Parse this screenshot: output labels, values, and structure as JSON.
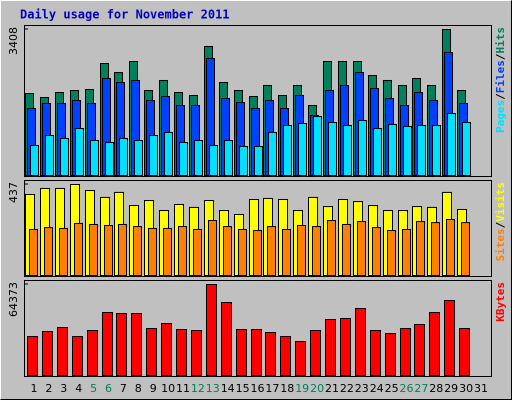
{
  "chart_data": [
    {
      "type": "bar",
      "title": "Daily usage for November 2011",
      "title_color": "#0000c0",
      "ylim": [
        0,
        3408
      ],
      "yticks": [
        3408
      ],
      "legend_separator": "/",
      "series": [
        {
          "name": "Hits",
          "color": "#00805c",
          "values": [
            1914,
            1821,
            1937,
            1984,
            2007,
            2614,
            2404,
            2661,
            1984,
            2218,
            1937,
            1867,
            3011,
            2171,
            1984,
            1844,
            2101,
            1867,
            2101,
            1634,
            2661,
            2661,
            2661,
            2334,
            2218,
            2101,
            2264,
            2101,
            3408,
            1984,
            null
          ]
        },
        {
          "name": "Files",
          "color": "#0040ff",
          "values": [
            1564,
            1681,
            1681,
            1751,
            1681,
            2264,
            2171,
            2218,
            1751,
            1844,
            1634,
            1634,
            2731,
            1797,
            1704,
            1564,
            1751,
            1564,
            1867,
            1401,
            1984,
            2101,
            2404,
            2031,
            1797,
            1634,
            1937,
            1751,
            2871,
            1681,
            null
          ]
        },
        {
          "name": "Pages",
          "color": "#00e0ff",
          "values": [
            700,
            934,
            864,
            1097,
            817,
            770,
            864,
            817,
            934,
            1004,
            770,
            817,
            700,
            817,
            677,
            677,
            1004,
            1167,
            1214,
            1377,
            1237,
            1167,
            1284,
            1097,
            1190,
            1144,
            1167,
            1167,
            1447,
            1237,
            null
          ]
        }
      ]
    },
    {
      "type": "bar",
      "ylim": [
        0,
        437
      ],
      "yticks": [
        437
      ],
      "legend_separator": "/",
      "series": [
        {
          "name": "Visits",
          "color": "#ffff00",
          "values": [
            389,
            418,
            418,
            437,
            408,
            375,
            399,
            336,
            360,
            312,
            341,
            327,
            360,
            312,
            293,
            365,
            370,
            365,
            312,
            375,
            331,
            365,
            355,
            336,
            312,
            312,
            331,
            327,
            399,
            317,
            null
          ]
        },
        {
          "name": "Sites",
          "color": "#ff8000",
          "values": [
            221,
            230,
            226,
            250,
            245,
            240,
            245,
            235,
            226,
            226,
            235,
            221,
            264,
            235,
            221,
            216,
            235,
            221,
            240,
            235,
            264,
            245,
            259,
            230,
            216,
            221,
            259,
            254,
            269,
            254,
            null
          ]
        }
      ]
    },
    {
      "type": "bar",
      "ylim": [
        0,
        64373
      ],
      "yticks": [
        64373
      ],
      "categories": [
        "1",
        "2",
        "3",
        "4",
        "5",
        "6",
        "7",
        "8",
        "9",
        "10",
        "11",
        "12",
        "13",
        "14",
        "15",
        "16",
        "17",
        "18",
        "19",
        "20",
        "21",
        "22",
        "23",
        "24",
        "25",
        "26",
        "27",
        "28",
        "29",
        "30",
        "31"
      ],
      "category_colors": [
        "#000",
        "#000",
        "#000",
        "#000",
        "#00805c",
        "#00805c",
        "#000",
        "#000",
        "#000",
        "#000",
        "#000",
        "#00805c",
        "#00805c",
        "#000",
        "#000",
        "#000",
        "#000",
        "#000",
        "#00805c",
        "#00805c",
        "#000",
        "#000",
        "#000",
        "#000",
        "#000",
        "#00805c",
        "#00805c",
        "#000",
        "#000",
        "#000",
        "#000"
      ],
      "series": [
        {
          "name": "KBytes",
          "color": "#ff0000",
          "values": [
            27590,
            31126,
            33956,
            27590,
            31833,
            44566,
            43859,
            43859,
            33248,
            36784,
            32541,
            31833,
            64373,
            51640,
            32541,
            32541,
            30418,
            27590,
            24051,
            31833,
            39614,
            40321,
            47396,
            31833,
            29711,
            33248,
            36077,
            44566,
            53055,
            33248,
            null
          ]
        }
      ]
    }
  ]
}
